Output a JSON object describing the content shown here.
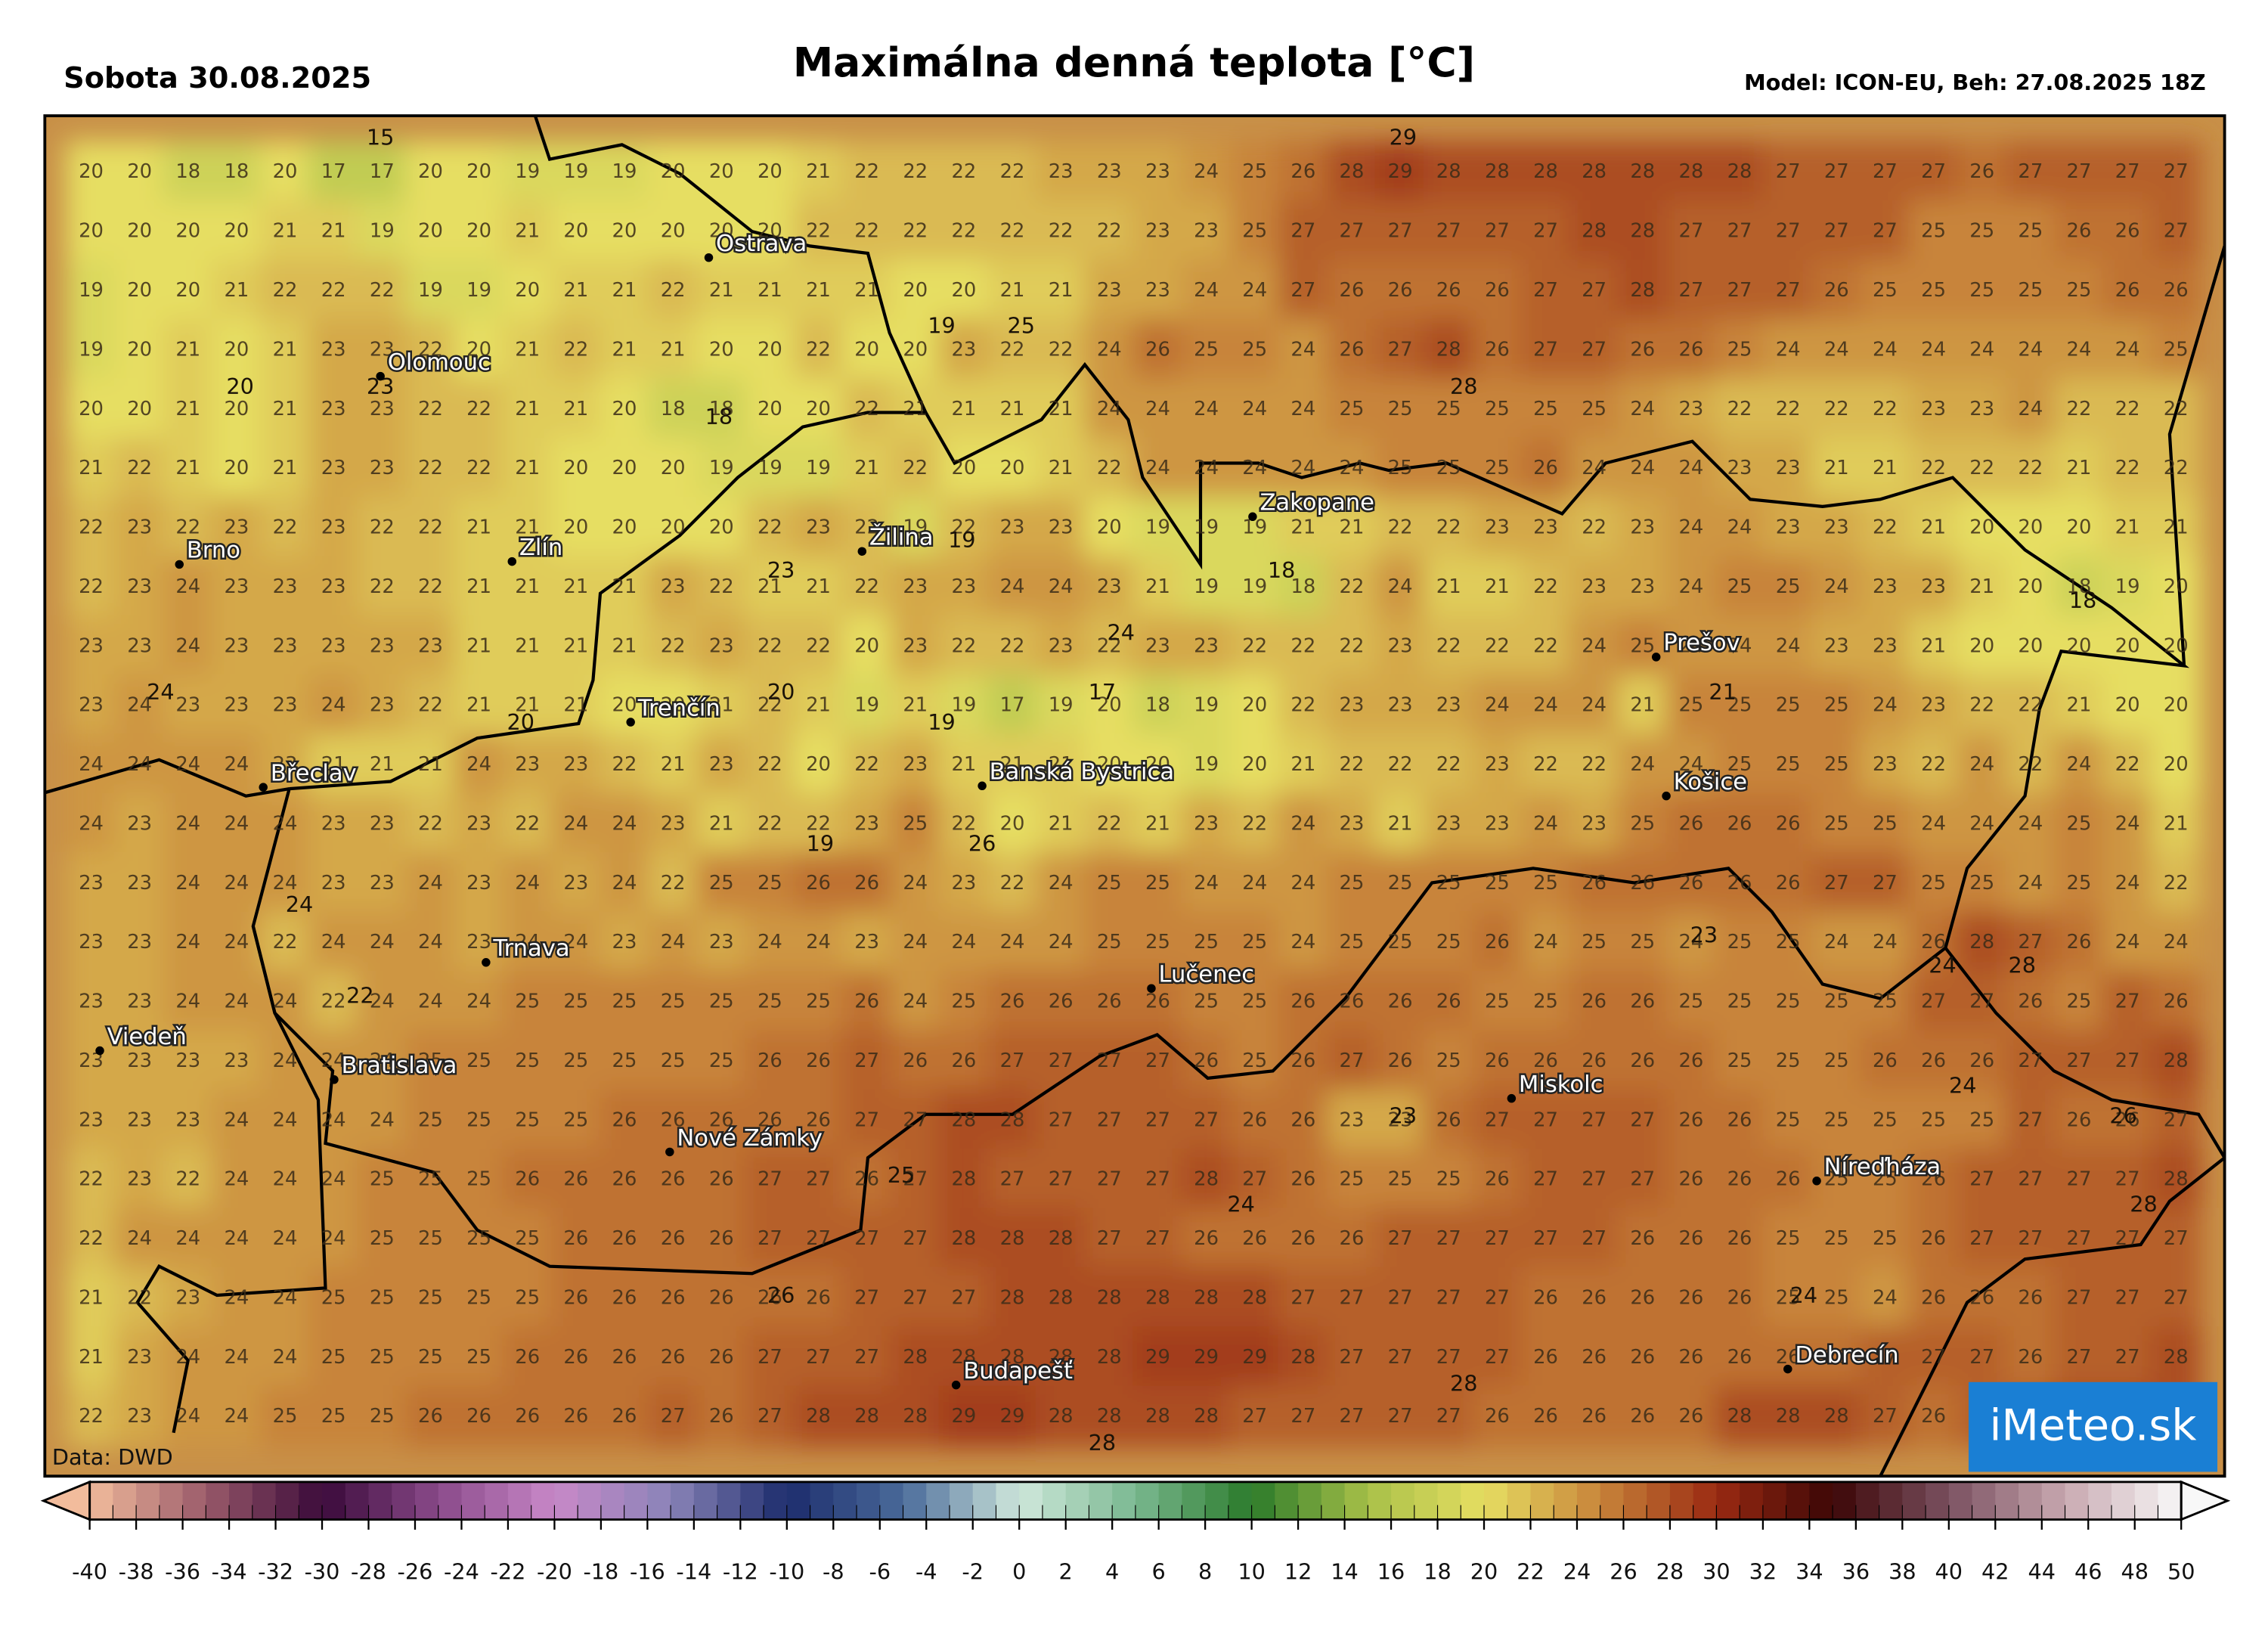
{
  "header": {
    "date": "Sobota 30.08.2025",
    "title": "Maximálna denná teplota [°C]",
    "model": "Model: ICON-EU, Beh: 27.08.2025 18Z"
  },
  "map": {
    "grid": [
      [
        20,
        20,
        18,
        18,
        20,
        17,
        17,
        20,
        20,
        19,
        19,
        19,
        20,
        20,
        20,
        21,
        22,
        22,
        22,
        22,
        23,
        23,
        23,
        24,
        25,
        26,
        28,
        29,
        28,
        28,
        28,
        28,
        28,
        28,
        28,
        27,
        27,
        27,
        27,
        26,
        27,
        27,
        27,
        27
      ],
      [
        20,
        20,
        20,
        20,
        21,
        21,
        19,
        20,
        20,
        21,
        20,
        20,
        20,
        20,
        20,
        22,
        22,
        22,
        22,
        22,
        22,
        22,
        23,
        23,
        25,
        27,
        27,
        27,
        27,
        27,
        27,
        28,
        28,
        27,
        27,
        27,
        27,
        27,
        25,
        25,
        25,
        26,
        26,
        27
      ],
      [
        19,
        20,
        20,
        21,
        22,
        22,
        22,
        19,
        19,
        20,
        21,
        21,
        22,
        21,
        21,
        21,
        21,
        20,
        20,
        21,
        21,
        23,
        23,
        24,
        24,
        27,
        26,
        26,
        26,
        26,
        27,
        27,
        28,
        27,
        27,
        27,
        26,
        25,
        25,
        25,
        25,
        25,
        26,
        26
      ],
      [
        19,
        20,
        21,
        20,
        21,
        23,
        23,
        22,
        20,
        21,
        22,
        21,
        21,
        20,
        20,
        22,
        20,
        20,
        23,
        22,
        22,
        24,
        26,
        25,
        25,
        24,
        26,
        27,
        28,
        26,
        27,
        27,
        26,
        26,
        25,
        24,
        24,
        24,
        24,
        24,
        24,
        24,
        24,
        25
      ],
      [
        20,
        20,
        21,
        20,
        21,
        23,
        23,
        22,
        22,
        21,
        21,
        20,
        18,
        18,
        20,
        20,
        22,
        21,
        21,
        21,
        21,
        24,
        24,
        24,
        24,
        24,
        25,
        25,
        25,
        25,
        25,
        25,
        24,
        23,
        22,
        22,
        22,
        22,
        23,
        23,
        24,
        22,
        22,
        22
      ],
      [
        21,
        22,
        21,
        20,
        21,
        23,
        23,
        22,
        22,
        21,
        20,
        20,
        20,
        19,
        19,
        19,
        21,
        22,
        20,
        20,
        21,
        22,
        24,
        24,
        24,
        24,
        24,
        25,
        25,
        25,
        26,
        24,
        24,
        24,
        23,
        23,
        21,
        21,
        22,
        22,
        22,
        21,
        22,
        22
      ],
      [
        22,
        23,
        22,
        23,
        22,
        23,
        22,
        22,
        21,
        21,
        20,
        20,
        20,
        20,
        22,
        23,
        22,
        19,
        22,
        23,
        23,
        20,
        19,
        19,
        19,
        21,
        21,
        22,
        22,
        23,
        23,
        22,
        23,
        24,
        24,
        23,
        23,
        22,
        21,
        20,
        20,
        20,
        21,
        21
      ],
      [
        22,
        23,
        24,
        23,
        23,
        23,
        22,
        22,
        21,
        21,
        21,
        21,
        23,
        22,
        21,
        21,
        22,
        23,
        23,
        24,
        24,
        23,
        21,
        19,
        19,
        18,
        22,
        24,
        21,
        21,
        22,
        23,
        23,
        24,
        25,
        25,
        24,
        23,
        23,
        21,
        20,
        18,
        19,
        20
      ],
      [
        23,
        23,
        24,
        23,
        23,
        23,
        23,
        23,
        21,
        21,
        21,
        21,
        22,
        23,
        22,
        22,
        20,
        23,
        22,
        22,
        23,
        22,
        23,
        23,
        22,
        22,
        22,
        23,
        22,
        22,
        22,
        24,
        25,
        24,
        24,
        24,
        23,
        23,
        21,
        20,
        20,
        20,
        20,
        20
      ],
      [
        23,
        24,
        23,
        23,
        23,
        24,
        23,
        22,
        21,
        21,
        21,
        20,
        20,
        21,
        22,
        21,
        19,
        21,
        19,
        17,
        19,
        20,
        18,
        19,
        20,
        22,
        23,
        23,
        23,
        24,
        24,
        24,
        21,
        25,
        25,
        25,
        25,
        24,
        23,
        22,
        22,
        21,
        20,
        20
      ],
      [
        24,
        24,
        24,
        24,
        23,
        21,
        21,
        21,
        24,
        23,
        23,
        22,
        21,
        23,
        22,
        20,
        22,
        23,
        21,
        21,
        21,
        20,
        20,
        19,
        20,
        21,
        22,
        22,
        22,
        23,
        22,
        22,
        24,
        24,
        25,
        25,
        25,
        23,
        22,
        24,
        22,
        24,
        22,
        20
      ],
      [
        24,
        23,
        24,
        24,
        24,
        23,
        23,
        22,
        23,
        22,
        24,
        24,
        23,
        21,
        22,
        22,
        23,
        25,
        22,
        20,
        21,
        22,
        21,
        23,
        22,
        24,
        23,
        21,
        23,
        23,
        24,
        23,
        25,
        26,
        26,
        26,
        25,
        25,
        24,
        24,
        24,
        25,
        24,
        21
      ],
      [
        23,
        23,
        24,
        24,
        24,
        23,
        23,
        24,
        23,
        24,
        23,
        24,
        22,
        25,
        25,
        26,
        26,
        24,
        23,
        22,
        24,
        25,
        25,
        24,
        24,
        24,
        25,
        25,
        25,
        25,
        25,
        26,
        26,
        26,
        26,
        26,
        27,
        27,
        25,
        25,
        24,
        25,
        24,
        22
      ],
      [
        23,
        23,
        24,
        24,
        22,
        24,
        24,
        24,
        23,
        24,
        24,
        23,
        24,
        23,
        24,
        24,
        23,
        24,
        24,
        24,
        24,
        25,
        25,
        25,
        25,
        24,
        25,
        25,
        25,
        26,
        24,
        25,
        25,
        24,
        25,
        25,
        24,
        24,
        26,
        28,
        27,
        26,
        24,
        24
      ],
      [
        23,
        23,
        24,
        24,
        24,
        22,
        24,
        24,
        24,
        25,
        25,
        25,
        25,
        25,
        25,
        25,
        26,
        24,
        25,
        26,
        26,
        26,
        26,
        25,
        25,
        26,
        26,
        26,
        26,
        25,
        25,
        26,
        26,
        25,
        25,
        25,
        25,
        25,
        27,
        27,
        26,
        25,
        27,
        26
      ],
      [
        23,
        23,
        23,
        23,
        24,
        24,
        24,
        25,
        25,
        25,
        25,
        25,
        25,
        25,
        26,
        26,
        27,
        26,
        26,
        27,
        27,
        27,
        27,
        26,
        25,
        26,
        27,
        26,
        25,
        26,
        26,
        26,
        26,
        26,
        25,
        25,
        25,
        26,
        26,
        26,
        27,
        27,
        27,
        28
      ],
      [
        23,
        23,
        23,
        24,
        24,
        24,
        24,
        25,
        25,
        25,
        25,
        26,
        26,
        26,
        26,
        26,
        27,
        27,
        28,
        28,
        27,
        27,
        27,
        27,
        26,
        26,
        23,
        23,
        26,
        27,
        27,
        27,
        27,
        26,
        26,
        25,
        25,
        25,
        25,
        25,
        27,
        26,
        26,
        27
      ],
      [
        22,
        23,
        22,
        24,
        24,
        24,
        25,
        25,
        25,
        26,
        26,
        26,
        26,
        26,
        27,
        27,
        26,
        27,
        28,
        27,
        27,
        27,
        27,
        28,
        27,
        26,
        25,
        25,
        25,
        26,
        27,
        27,
        27,
        26,
        26,
        26,
        25,
        25,
        26,
        27,
        27,
        27,
        27,
        28
      ],
      [
        22,
        24,
        24,
        24,
        24,
        24,
        25,
        25,
        25,
        25,
        26,
        26,
        26,
        26,
        27,
        27,
        27,
        27,
        28,
        28,
        28,
        27,
        27,
        26,
        26,
        26,
        26,
        27,
        27,
        27,
        27,
        27,
        26,
        26,
        26,
        25,
        25,
        25,
        26,
        27,
        27,
        27,
        27,
        27
      ],
      [
        21,
        22,
        23,
        24,
        24,
        25,
        25,
        25,
        25,
        25,
        26,
        26,
        26,
        26,
        26,
        26,
        27,
        27,
        27,
        28,
        28,
        28,
        28,
        28,
        28,
        27,
        27,
        27,
        27,
        27,
        26,
        26,
        26,
        26,
        26,
        25,
        25,
        24,
        26,
        26,
        26,
        27,
        27,
        27
      ],
      [
        21,
        23,
        24,
        24,
        24,
        25,
        25,
        25,
        25,
        26,
        26,
        26,
        26,
        26,
        27,
        27,
        27,
        28,
        28,
        28,
        28,
        28,
        29,
        29,
        29,
        28,
        27,
        27,
        27,
        27,
        26,
        26,
        26,
        26,
        26,
        26,
        26,
        27,
        27,
        27,
        26,
        27,
        27,
        28
      ],
      [
        22,
        23,
        24,
        24,
        25,
        25,
        25,
        26,
        26,
        26,
        26,
        26,
        27,
        26,
        27,
        28,
        28,
        28,
        29,
        29,
        28,
        28,
        28,
        28,
        27,
        27,
        27,
        27,
        27,
        26,
        26,
        26,
        26,
        26,
        28,
        28,
        28,
        27,
        26,
        27,
        27,
        28,
        28,
        28
      ]
    ],
    "extremes": [
      15,
      29,
      19,
      25,
      20,
      23,
      18,
      28,
      23,
      19,
      18,
      24,
      18,
      24,
      20,
      20,
      17,
      19,
      21,
      19,
      26,
      24,
      22,
      23,
      24,
      28,
      24,
      23,
      26,
      25,
      24,
      28,
      26,
      24,
      28,
      28
    ],
    "cities": [
      "Ostrava",
      "Olomouc",
      "Brno",
      "Zlín",
      "Žilina",
      "Zakopane",
      "Trenčín",
      "Prešov",
      "Košice",
      "Břeclav",
      "Banská Bystrica",
      "Trnava",
      "Lučenec",
      "Viedeň",
      "Bratislava",
      "Miskolc",
      "Nové Zámky",
      "Níreďháza",
      "Budapešť",
      "Debrecín"
    ],
    "source": "Data: DWD",
    "logo": "iMeteo.sk"
  },
  "colorbar": {
    "ticks": [
      -40,
      -38,
      -36,
      -34,
      -32,
      -30,
      -28,
      -26,
      -24,
      -22,
      -20,
      -18,
      -16,
      -14,
      -12,
      -10,
      -8,
      -6,
      -4,
      -2,
      0,
      2,
      4,
      6,
      8,
      10,
      12,
      14,
      16,
      18,
      20,
      22,
      24,
      26,
      28,
      30,
      32,
      34,
      36,
      38,
      40,
      42,
      44,
      46,
      48,
      50
    ],
    "colors": [
      "#f2bc9c",
      "#9a5a6a",
      "#3a0a3a",
      "#8a4a8a",
      "#c888c8",
      "#8a84b8",
      "#1c2c6c",
      "#4a6a9a",
      "#cfe8dc",
      "#7ab890",
      "#2a7a2a",
      "#a8c048",
      "#e6de62",
      "#c8843a",
      "#9a2a12",
      "#3c0606",
      "#7a5060",
      "#c8a8b0",
      "#f8f8f8"
    ]
  }
}
